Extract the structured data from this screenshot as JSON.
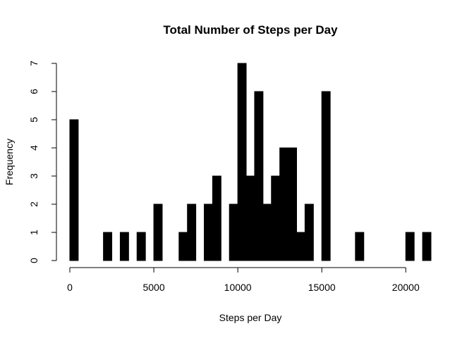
{
  "chart_data": {
    "type": "bar",
    "title": "Total Number of Steps per Day",
    "xlabel": "Steps per Day",
    "ylabel": "Frequency",
    "bin_width": 500,
    "bin_starts": [
      0,
      500,
      1000,
      1500,
      2000,
      2500,
      3000,
      3500,
      4000,
      4500,
      5000,
      5500,
      6000,
      6500,
      7000,
      7500,
      8000,
      8500,
      9000,
      9500,
      10000,
      10500,
      11000,
      11500,
      12000,
      12500,
      13000,
      13500,
      14000,
      14500,
      15000,
      15500,
      16000,
      16500,
      17000,
      17500,
      18000,
      18500,
      19000,
      19500,
      20000,
      20500,
      21000
    ],
    "values": [
      5,
      0,
      0,
      0,
      1,
      0,
      1,
      0,
      1,
      0,
      2,
      0,
      0,
      1,
      2,
      0,
      2,
      3,
      0,
      2,
      7,
      3,
      6,
      2,
      3,
      4,
      4,
      1,
      2,
      0,
      6,
      0,
      0,
      0,
      1,
      0,
      0,
      0,
      0,
      0,
      1,
      0,
      1
    ],
    "xlim": [
      0,
      21500
    ],
    "ylim": [
      0,
      7
    ],
    "x_ticks": [
      0,
      5000,
      10000,
      15000,
      20000
    ],
    "y_ticks": [
      0,
      1,
      2,
      3,
      4,
      5,
      6,
      7
    ],
    "grid": false
  }
}
